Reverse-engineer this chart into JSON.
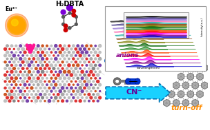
{
  "bg_color": "#ffffff",
  "eu_label": "Eu³⁺",
  "h2dbta_label": "H₂DBTA",
  "anions_label": "anions",
  "cn_label": "CN⁻",
  "turnoff_label": "turn-off",
  "arrow_pink": "#FF1493",
  "arrow_blue_solid": "#1E90FF",
  "arrow_blue_dashed": "#00BFFF",
  "anions_color": "#8B008B",
  "turnoff_color": "#FF8C00",
  "spectrum_colors": [
    "#0000CD",
    "#8B008B",
    "#FF00FF",
    "#FF0000",
    "#FF4500",
    "#228B22",
    "#006400",
    "#808000",
    "#8B4513",
    "#20B2AA",
    "#FF69B4",
    "#9370DB",
    "#483D8B",
    "#000000"
  ],
  "mof_color": "#808080"
}
